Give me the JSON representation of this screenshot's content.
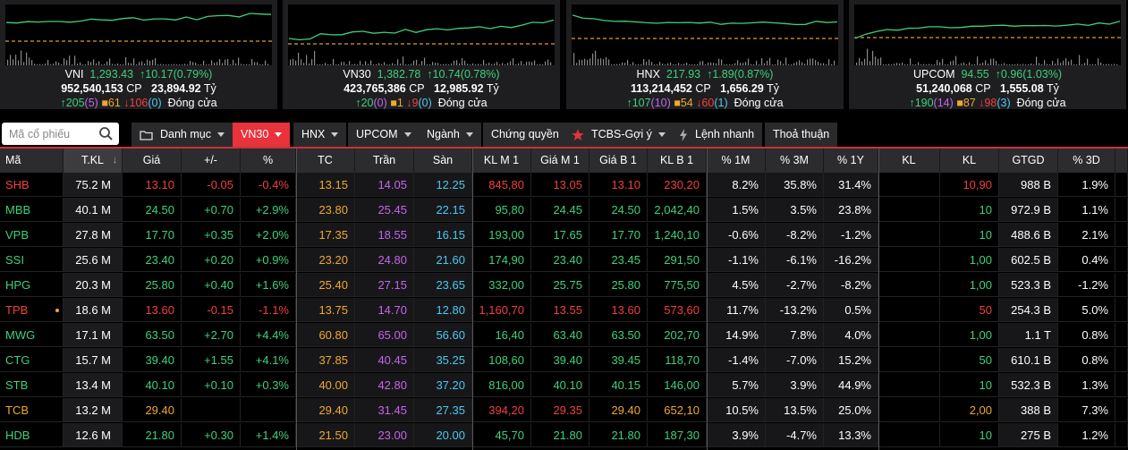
{
  "indices": [
    {
      "name": "VNI",
      "value": "1,293.43",
      "change": "10.17",
      "change_pct": "(0.79%)",
      "volume": "952,540,153",
      "volume_unit": "CP",
      "turnover": "23,894.92",
      "turnover_unit": "Tỷ",
      "up": "205",
      "ceil": "(5)",
      "ref": "61",
      "down": "106",
      "floor": "(0)",
      "status": "Đóng cửa"
    },
    {
      "name": "VN30",
      "value": "1,382.78",
      "change": "10.74",
      "change_pct": "(0.78%)",
      "volume": "423,765,386",
      "volume_unit": "CP",
      "turnover": "12,985.92",
      "turnover_unit": "Tỷ",
      "up": "20",
      "ceil": "(0)",
      "ref": "1",
      "down": "9",
      "floor": "(0)",
      "status": "Đóng cửa"
    },
    {
      "name": "HNX",
      "value": "217.93",
      "change": "1.89",
      "change_pct": "(0.87%)",
      "volume": "113,214,452",
      "volume_unit": "CP",
      "turnover": "1,656.29",
      "turnover_unit": "Tỷ",
      "up": "107",
      "ceil": "(10)",
      "ref": "54",
      "down": "60",
      "floor": "(1)",
      "status": "Đóng cửa"
    },
    {
      "name": "UPCOM",
      "value": "94.55",
      "change": "0.96",
      "change_pct": "(1.03%)",
      "volume": "51,240,068",
      "volume_unit": "CP",
      "turnover": "1,555.08",
      "turnover_unit": "Tỷ",
      "up": "190",
      "ceil": "(14)",
      "ref": "87",
      "down": "98",
      "floor": "(3)",
      "status": "Đóng cửa"
    }
  ],
  "search": {
    "placeholder": "Mã cổ phiếu"
  },
  "tabs": {
    "danh_muc": "Danh mục",
    "vn30": "VN30",
    "hnx": "HNX",
    "upcom": "UPCOM",
    "nganh": "Ngành",
    "chung_quyen": "Chứng quyền",
    "tcbs": "TCBS-Gợi ý",
    "lenh_nhanh": "Lệnh nhanh",
    "thoa_thuan": "Thoả thuận"
  },
  "columns": [
    "Mã",
    "T.KL",
    "Giá",
    "+/-",
    "%",
    "TC",
    "Trần",
    "Sàn",
    "KL M 1",
    "Giá M 1",
    "Giá B 1",
    "KL B 1",
    "% 1M",
    "% 3M",
    "% 1Y",
    "KL",
    "KL",
    "GTGD",
    "% 3D"
  ],
  "sort_indicator": "↓",
  "rows": [
    {
      "sym": "SHB",
      "tkl": "75.2 M",
      "gia": "13.10",
      "chg": "-0.05",
      "pct": "-0.4%",
      "tc": "13.15",
      "tran": "14.05",
      "san": "12.25",
      "klm1": "845,80",
      "giam1": "13.05",
      "giab1": "13.10",
      "klb1": "230,20",
      "m1": "8.2%",
      "m3": "35.8%",
      "y1": "31.4%",
      "kl1": "",
      "kl2": "10,90",
      "gtgd": "988 B",
      "d3": "1.9%",
      "trend": "down"
    },
    {
      "sym": "MBB",
      "tkl": "40.1 M",
      "gia": "24.50",
      "chg": "+0.70",
      "pct": "+2.9%",
      "tc": "23.80",
      "tran": "25.45",
      "san": "22.15",
      "klm1": "95,80",
      "giam1": "24.45",
      "giab1": "24.50",
      "klb1": "2,042,40",
      "m1": "1.5%",
      "m3": "3.5%",
      "y1": "23.8%",
      "kl1": "",
      "kl2": "10",
      "gtgd": "972.9 B",
      "d3": "1.1%",
      "trend": "up"
    },
    {
      "sym": "VPB",
      "tkl": "27.8 M",
      "gia": "17.70",
      "chg": "+0.35",
      "pct": "+2.0%",
      "tc": "17.35",
      "tran": "18.55",
      "san": "16.15",
      "klm1": "193,00",
      "giam1": "17.65",
      "giab1": "17.70",
      "klb1": "1,240,10",
      "m1": "-0.6%",
      "m3": "-8.2%",
      "y1": "-1.2%",
      "kl1": "",
      "kl2": "10",
      "gtgd": "488.6 B",
      "d3": "2.1%",
      "trend": "up"
    },
    {
      "sym": "SSI",
      "tkl": "25.6 M",
      "gia": "23.40",
      "chg": "+0.20",
      "pct": "+0.9%",
      "tc": "23.20",
      "tran": "24.80",
      "san": "21.60",
      "klm1": "174,90",
      "giam1": "23.40",
      "giab1": "23.45",
      "klb1": "291,50",
      "m1": "-1.1%",
      "m3": "-6.1%",
      "y1": "-16.2%",
      "kl1": "",
      "kl2": "1,00",
      "gtgd": "602.5 B",
      "d3": "0.4%",
      "trend": "up"
    },
    {
      "sym": "HPG",
      "tkl": "20.3 M",
      "gia": "25.80",
      "chg": "+0.40",
      "pct": "+1.6%",
      "tc": "25.40",
      "tran": "27.15",
      "san": "23.65",
      "klm1": "332,00",
      "giam1": "25.75",
      "giab1": "25.80",
      "klb1": "775,50",
      "m1": "4.5%",
      "m3": "-2.7%",
      "y1": "-8.2%",
      "kl1": "",
      "kl2": "1,00",
      "gtgd": "523.3 B",
      "d3": "-1.2%",
      "trend": "up"
    },
    {
      "sym": "TPB",
      "tkl": "18.6 M",
      "gia": "13.60",
      "chg": "-0.15",
      "pct": "-1.1%",
      "tc": "13.75",
      "tran": "14.70",
      "san": "12.80",
      "klm1": "1,160,70",
      "giam1": "13.55",
      "giab1": "13.60",
      "klb1": "573,60",
      "m1": "11.7%",
      "m3": "-13.2%",
      "y1": "0.5%",
      "kl1": "",
      "kl2": "50",
      "gtgd": "254.3 B",
      "d3": "5.0%",
      "trend": "down"
    },
    {
      "sym": "MWG",
      "tkl": "17.1 M",
      "gia": "63.50",
      "chg": "+2.70",
      "pct": "+4.4%",
      "tc": "60.80",
      "tran": "65.00",
      "san": "56.60",
      "klm1": "16,40",
      "giam1": "63.40",
      "giab1": "63.50",
      "klb1": "202,70",
      "m1": "14.9%",
      "m3": "7.8%",
      "y1": "4.0%",
      "kl1": "",
      "kl2": "1,00",
      "gtgd": "1.1 T",
      "d3": "0.8%",
      "trend": "up"
    },
    {
      "sym": "CTG",
      "tkl": "15.7 M",
      "gia": "39.40",
      "chg": "+1.55",
      "pct": "+4.1%",
      "tc": "37.85",
      "tran": "40.45",
      "san": "35.25",
      "klm1": "108,60",
      "giam1": "39.40",
      "giab1": "39.45",
      "klb1": "118,70",
      "m1": "-1.4%",
      "m3": "-7.0%",
      "y1": "15.2%",
      "kl1": "",
      "kl2": "50",
      "gtgd": "610.1 B",
      "d3": "0.8%",
      "trend": "up"
    },
    {
      "sym": "STB",
      "tkl": "13.4 M",
      "gia": "40.10",
      "chg": "+0.10",
      "pct": "+0.3%",
      "tc": "40.00",
      "tran": "42.80",
      "san": "37.20",
      "klm1": "816,00",
      "giam1": "40.10",
      "giab1": "40.15",
      "klb1": "146,00",
      "m1": "5.7%",
      "m3": "3.9%",
      "y1": "44.9%",
      "kl1": "",
      "kl2": "10",
      "gtgd": "532.3 B",
      "d3": "1.3%",
      "trend": "up"
    },
    {
      "sym": "TCB",
      "tkl": "13.2 M",
      "gia": "29.40",
      "chg": "",
      "pct": "",
      "tc": "29.40",
      "tran": "31.45",
      "san": "27.35",
      "klm1": "394,20",
      "giam1": "29.35",
      "giab1": "29.40",
      "klb1": "652,10",
      "m1": "10.5%",
      "m3": "13.5%",
      "y1": "25.0%",
      "kl1": "",
      "kl2": "2,00",
      "gtgd": "388 B",
      "d3": "7.3%",
      "trend": "ref"
    },
    {
      "sym": "HDB",
      "tkl": "12.6 M",
      "gia": "21.80",
      "chg": "+0.30",
      "pct": "+1.4%",
      "tc": "21.50",
      "tran": "23.00",
      "san": "20.00",
      "klm1": "45,70",
      "giam1": "21.80",
      "giab1": "21.80",
      "klb1": "187,30",
      "m1": "3.9%",
      "m3": "-4.7%",
      "y1": "13.3%",
      "kl1": "",
      "kl2": "10",
      "gtgd": "275 B",
      "d3": "1.2%",
      "trend": "up"
    }
  ],
  "colors": {
    "up": "#3ed07e",
    "down": "#f23f3f",
    "ref": "#f0a830",
    "ceil": "#c267e8",
    "floor": "#4cc8f0",
    "accent": "#e8323c"
  }
}
